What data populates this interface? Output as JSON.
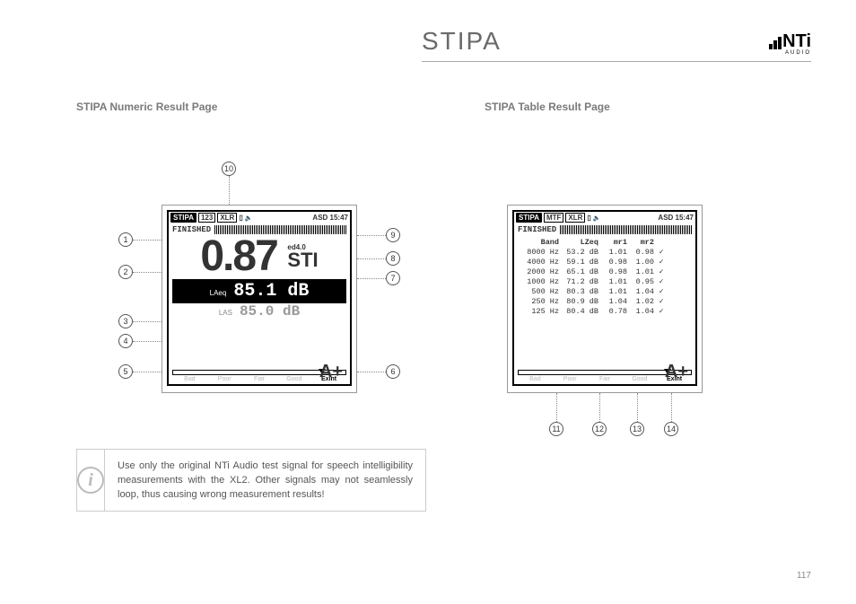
{
  "header": {
    "title": "STIPA",
    "logo_text": "NTi",
    "logo_sub": "AUDIO"
  },
  "sections": {
    "left_title": "STIPA Numeric Result Page",
    "right_title": "STIPA Table Result Page"
  },
  "numeric_screen": {
    "topbar": {
      "mode": "STIPA",
      "view": "123",
      "input": "XLR",
      "extra": "ASD 15:47"
    },
    "status": "FINISHED",
    "sti_value": "0.87",
    "sti_edition": "ed4.0",
    "sti_label": "STI",
    "laeq_label": "LAeq",
    "laeq_value": "85.1 dB",
    "las_label": "LAS",
    "las_value": "85.0 dB",
    "quality": {
      "labels": [
        "Bad",
        "Poor",
        "Fair",
        "Good",
        "Exlnt"
      ],
      "grade": "A+"
    }
  },
  "table_screen": {
    "topbar": {
      "mode": "STIPA",
      "view": "MTF",
      "input": "XLR",
      "extra": "ASD 15:47"
    },
    "status": "FINISHED",
    "columns": [
      "Band",
      "LZeq",
      "mr1",
      "mr2"
    ],
    "rows": [
      [
        "8000 Hz",
        "53.2 dB",
        "1.01",
        "0.98",
        "✓"
      ],
      [
        "4000 Hz",
        "59.1 dB",
        "0.98",
        "1.00",
        "✓"
      ],
      [
        "2000 Hz",
        "65.1 dB",
        "0.98",
        "1.01",
        "✓"
      ],
      [
        "1000 Hz",
        "71.2 dB",
        "1.01",
        "0.95",
        "✓"
      ],
      [
        "500 Hz",
        "80.3 dB",
        "1.01",
        "1.04",
        "✓"
      ],
      [
        "250 Hz",
        "80.9 dB",
        "1.04",
        "1.02",
        "✓"
      ],
      [
        "125 Hz",
        "80.4 dB",
        "0.78",
        "1.04",
        "✓"
      ]
    ],
    "quality": {
      "labels": [
        "Bad",
        "Poor",
        "Fair",
        "Good",
        "Exlnt"
      ],
      "grade": "A+"
    }
  },
  "callouts_left": [
    "1",
    "2",
    "3",
    "4",
    "5",
    "6",
    "7",
    "8",
    "9",
    "10"
  ],
  "callouts_right": [
    "11",
    "12",
    "13",
    "14"
  ],
  "info_text": "Use only the original NTi Audio test signal for speech intelligibility measurements with the XL2. Other signals may not seamlessly loop, thus causing wrong measurement results!",
  "page_number": "117"
}
